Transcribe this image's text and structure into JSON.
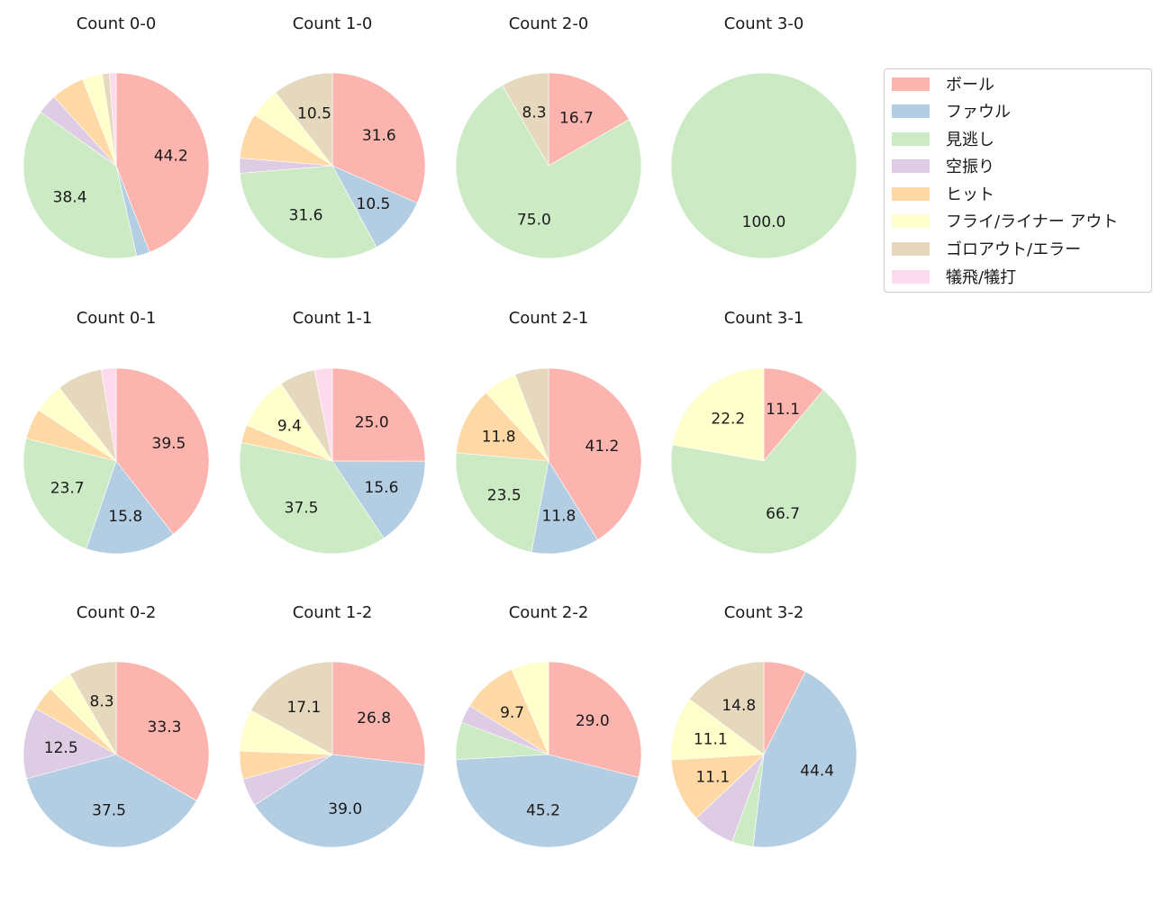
{
  "figure": {
    "legend": [
      {
        "label": "ボール",
        "color": "#fbb4ae"
      },
      {
        "label": "ファウル",
        "color": "#b3cde3"
      },
      {
        "label": "見逃し",
        "color": "#ccebc5"
      },
      {
        "label": "空振り",
        "color": "#decbe4"
      },
      {
        "label": "ヒット",
        "color": "#fed9a6"
      },
      {
        "label": "フライ/ライナー アウト",
        "color": "#ffffcc"
      },
      {
        "label": "ゴロアウト/エラー",
        "color": "#e5d8bd"
      },
      {
        "label": "犠飛/犠打",
        "color": "#fddaec"
      }
    ]
  },
  "chart_data": [
    {
      "type": "pie",
      "title": "Count 0-0",
      "categories": [
        "ボール",
        "ファウル",
        "見逃し",
        "空振り",
        "ヒット",
        "フライ/ライナー アウト",
        "ゴロアウト/エラー",
        "犠飛/犠打"
      ],
      "values": [
        44.2,
        2.3,
        38.4,
        3.5,
        5.8,
        3.5,
        1.2,
        1.2
      ],
      "labels_shown": [
        "44.2",
        "",
        "38.4",
        "",
        "",
        "",
        "",
        ""
      ]
    },
    {
      "type": "pie",
      "title": "Count 1-0",
      "categories": [
        "ボール",
        "ファウル",
        "見逃し",
        "空振り",
        "ヒット",
        "フライ/ライナー アウト",
        "ゴロアウト/エラー",
        "犠飛/犠打"
      ],
      "values": [
        31.6,
        10.5,
        31.6,
        2.6,
        7.9,
        5.3,
        10.5,
        0
      ],
      "labels_shown": [
        "31.6",
        "10.5",
        "31.6",
        "",
        "",
        "",
        "10.5",
        ""
      ]
    },
    {
      "type": "pie",
      "title": "Count 2-0",
      "categories": [
        "ボール",
        "ファウル",
        "見逃し",
        "空振り",
        "ヒット",
        "フライ/ライナー アウト",
        "ゴロアウト/エラー",
        "犠飛/犠打"
      ],
      "values": [
        16.7,
        0,
        75.0,
        0,
        0,
        0,
        8.3,
        0
      ],
      "labels_shown": [
        "16.7",
        "",
        "75.0",
        "",
        "",
        "",
        "8.3",
        ""
      ]
    },
    {
      "type": "pie",
      "title": "Count 3-0",
      "categories": [
        "ボール",
        "ファウル",
        "見逃し",
        "空振り",
        "ヒット",
        "フライ/ライナー アウト",
        "ゴロアウト/エラー",
        "犠飛/犠打"
      ],
      "values": [
        0,
        0,
        100.0,
        0,
        0,
        0,
        0,
        0
      ],
      "labels_shown": [
        "",
        "",
        "100.0",
        "",
        "",
        "",
        "",
        ""
      ]
    },
    {
      "type": "pie",
      "title": "Count 0-1",
      "categories": [
        "ボール",
        "ファウル",
        "見逃し",
        "空振り",
        "ヒット",
        "フライ/ライナー アウト",
        "ゴロアウト/エラー",
        "犠飛/犠打"
      ],
      "values": [
        39.5,
        15.8,
        23.7,
        0,
        5.3,
        5.3,
        7.9,
        2.6
      ],
      "labels_shown": [
        "39.5",
        "15.8",
        "23.7",
        "",
        "",
        "",
        "",
        ""
      ]
    },
    {
      "type": "pie",
      "title": "Count 1-1",
      "categories": [
        "ボール",
        "ファウル",
        "見逃し",
        "空振り",
        "ヒット",
        "フライ/ライナー アウト",
        "ゴロアウト/エラー",
        "犠飛/犠打"
      ],
      "values": [
        25.0,
        15.6,
        37.5,
        0,
        3.1,
        9.4,
        6.2,
        3.1
      ],
      "labels_shown": [
        "25.0",
        "15.6",
        "37.5",
        "",
        "",
        "9.4",
        "",
        ""
      ]
    },
    {
      "type": "pie",
      "title": "Count 2-1",
      "categories": [
        "ボール",
        "ファウル",
        "見逃し",
        "空振り",
        "ヒット",
        "フライ/ライナー アウト",
        "ゴロアウト/エラー",
        "犠飛/犠打"
      ],
      "values": [
        41.2,
        11.8,
        23.5,
        0,
        11.8,
        5.9,
        5.9,
        0
      ],
      "labels_shown": [
        "41.2",
        "11.8",
        "23.5",
        "",
        "11.8",
        "",
        "",
        ""
      ]
    },
    {
      "type": "pie",
      "title": "Count 3-1",
      "categories": [
        "ボール",
        "ファウル",
        "見逃し",
        "空振り",
        "ヒット",
        "フライ/ライナー アウト",
        "ゴロアウト/エラー",
        "犠飛/犠打"
      ],
      "values": [
        11.1,
        0,
        66.7,
        0,
        0,
        22.2,
        0,
        0
      ],
      "labels_shown": [
        "11.1",
        "",
        "66.7",
        "",
        "",
        "22.2",
        "",
        ""
      ]
    },
    {
      "type": "pie",
      "title": "Count 0-2",
      "categories": [
        "ボール",
        "ファウル",
        "見逃し",
        "空振り",
        "ヒット",
        "フライ/ライナー アウト",
        "ゴロアウト/エラー",
        "犠飛/犠打"
      ],
      "values": [
        33.3,
        37.5,
        0,
        12.5,
        4.2,
        4.2,
        8.3,
        0
      ],
      "labels_shown": [
        "33.3",
        "37.5",
        "",
        "12.5",
        "",
        "",
        "8.3",
        ""
      ]
    },
    {
      "type": "pie",
      "title": "Count 1-2",
      "categories": [
        "ボール",
        "ファウル",
        "見逃し",
        "空振り",
        "ヒット",
        "フライ/ライナー アウト",
        "ゴロアウト/エラー",
        "犠飛/犠打"
      ],
      "values": [
        26.8,
        39.0,
        0,
        4.9,
        4.9,
        7.3,
        17.1,
        0
      ],
      "labels_shown": [
        "26.8",
        "39.0",
        "",
        "",
        "",
        "",
        "17.1",
        ""
      ]
    },
    {
      "type": "pie",
      "title": "Count 2-2",
      "categories": [
        "ボール",
        "ファウル",
        "見逃し",
        "空振り",
        "ヒット",
        "フライ/ライナー アウト",
        "ゴロアウト/エラー",
        "犠飛/犠打"
      ],
      "values": [
        29.0,
        45.2,
        6.5,
        3.2,
        9.7,
        6.5,
        0,
        0
      ],
      "labels_shown": [
        "29.0",
        "45.2",
        "",
        "",
        "9.7",
        "",
        "",
        ""
      ]
    },
    {
      "type": "pie",
      "title": "Count 3-2",
      "categories": [
        "ボール",
        "ファウル",
        "見逃し",
        "空振り",
        "ヒット",
        "フライ/ライナー アウト",
        "ゴロアウト/エラー",
        "犠飛/犠打"
      ],
      "values": [
        7.4,
        44.4,
        3.7,
        7.4,
        11.1,
        11.1,
        14.8,
        0
      ],
      "labels_shown": [
        "",
        "44.4",
        "",
        "",
        "11.1",
        "11.1",
        "14.8",
        ""
      ]
    }
  ]
}
